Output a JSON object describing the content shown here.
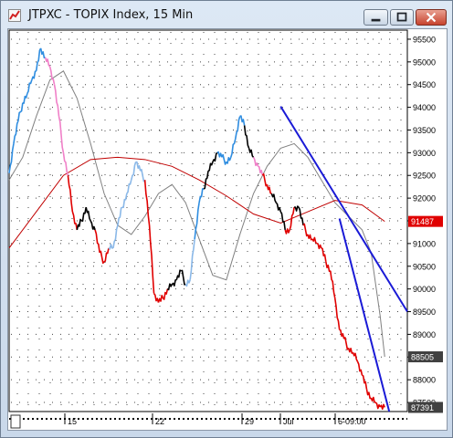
{
  "window": {
    "title": "JTPXC - TOPIX Index, 15 Min",
    "controls": [
      "minimize",
      "maximize",
      "close"
    ]
  },
  "icons": {
    "app": "chart-app-icon",
    "minimize": "minimize-icon",
    "maximize": "maximize-icon",
    "close": "close-icon"
  },
  "colors": {
    "up_bar": "#2f8de0",
    "down_bar_strong": "#e00000",
    "neutral_bar": "#000000",
    "soft_down": "#f080c8",
    "soft_up": "#8ab8e8",
    "fast_ma": "#808080",
    "slow_ma": "#c00000",
    "trendline": "#1a1ad6",
    "last_price_label_bg": "#404040",
    "ma_label_bg": "#e00000"
  },
  "chart_data": {
    "type": "line",
    "title": "JTPXC - TOPIX Index, 15 Min",
    "y_ticks": [
      "95500",
      "95000",
      "94500",
      "94000",
      "93500",
      "93000",
      "92500",
      "92000",
      "91500",
      "91000",
      "90500",
      "90000",
      "89500",
      "89000",
      "88500",
      "88000",
      "87500"
    ],
    "ylim": [
      87300,
      95700
    ],
    "x_ticks": [
      "15",
      "22",
      "29",
      "Jul",
      "6-09:00"
    ],
    "price_labels": [
      {
        "text": "91487",
        "value": 91487,
        "color": "#e00000"
      },
      {
        "text": "88505",
        "value": 88505,
        "color": "#404040"
      },
      {
        "text": "87391",
        "value": 87391,
        "color": "#404040"
      }
    ],
    "series": [
      {
        "kind": "price",
        "x": [
          0,
          5,
          10,
          15,
          20,
          25,
          30,
          35,
          40,
          45,
          50,
          55,
          60,
          65,
          70,
          75,
          80,
          85,
          90,
          95,
          100,
          105,
          110,
          115,
          120,
          125,
          130,
          135,
          140,
          145,
          150,
          155,
          160,
          165,
          170,
          175,
          180,
          185,
          190,
          195,
          200,
          205,
          210,
          215,
          220,
          225,
          230,
          235,
          240,
          245,
          250,
          255,
          260,
          265,
          270,
          275,
          280,
          285,
          290,
          295,
          300,
          305,
          310,
          315,
          320,
          325,
          330,
          335,
          340,
          345,
          350,
          355,
          360,
          365,
          370,
          375,
          380,
          385,
          390,
          395,
          400,
          405,
          410,
          415
        ],
        "values": [
          92550,
          93200,
          93700,
          94100,
          94300,
          94600,
          94800,
          95300,
          95100,
          94900,
          94500,
          93800,
          93000,
          92500,
          91700,
          91300,
          91500,
          91800,
          91500,
          91300,
          90800,
          90600,
          90900,
          90900,
          91400,
          91800,
          92100,
          92400,
          92800,
          92600,
          92400,
          91400,
          89900,
          89700,
          89800,
          90000,
          90100,
          90200,
          90400,
          90100,
          90200,
          91100,
          91900,
          92200,
          92600,
          92800,
          93000,
          92900,
          92800,
          92900,
          93300,
          93800,
          93600,
          93100,
          92900,
          92700,
          92500,
          92300,
          92100,
          91900,
          91700,
          91300,
          91300,
          91800,
          91800,
          91400,
          91200,
          91100,
          91000,
          90900,
          90600,
          90400,
          89800,
          89100,
          88900,
          88700,
          88600,
          88400,
          88100,
          87800,
          87600,
          87500,
          87400,
          87391
        ],
        "colors": [
          "#2f8de0",
          "#2f8de0",
          "#2f8de0",
          "#2f8de0",
          "#2f8de0",
          "#2f8de0",
          "#2f8de0",
          "#2f8de0",
          "#f080c8",
          "#f080c8",
          "#f080c8",
          "#f080c8",
          "#f080c8",
          "#e00000",
          "#e00000",
          "#000000",
          "#000000",
          "#000000",
          "#000000",
          "#e00000",
          "#e00000",
          "#e00000",
          "#8ab8e8",
          "#8ab8e8",
          "#8ab8e8",
          "#8ab8e8",
          "#8ab8e8",
          "#8ab8e8",
          "#8ab8e8",
          "#8ab8e8",
          "#e00000",
          "#e00000",
          "#e00000",
          "#e00000",
          "#e00000",
          "#000000",
          "#000000",
          "#000000",
          "#000000",
          "#8ab8e8",
          "#8ab8e8",
          "#2f8de0",
          "#2f8de0",
          "#000000",
          "#000000",
          "#000000",
          "#2f8de0",
          "#2f8de0",
          "#2f8de0",
          "#2f8de0",
          "#2f8de0",
          "#2f8de0",
          "#000000",
          "#000000",
          "#f080c8",
          "#f080c8",
          "#e00000",
          "#e00000",
          "#000000",
          "#000000",
          "#000000",
          "#e00000",
          "#e00000",
          "#000000",
          "#000000",
          "#e00000",
          "#e00000",
          "#e00000",
          "#e00000",
          "#e00000",
          "#e00000",
          "#e00000",
          "#e00000",
          "#e00000",
          "#e00000",
          "#e00000",
          "#e00000",
          "#e00000",
          "#e00000",
          "#e00000",
          "#e00000",
          "#e00000",
          "#e00000",
          "#e00000"
        ]
      },
      {
        "kind": "fast_ma",
        "x": [
          0,
          15,
          30,
          45,
          60,
          75,
          90,
          105,
          120,
          135,
          150,
          165,
          180,
          195,
          210,
          225,
          240,
          255,
          270,
          285,
          300,
          315,
          330,
          345,
          360,
          375,
          390,
          400,
          410,
          415
        ],
        "values": [
          92400,
          92900,
          93800,
          94600,
          94800,
          94200,
          93200,
          92100,
          91400,
          91200,
          91600,
          92100,
          92300,
          91900,
          91100,
          90300,
          90200,
          91200,
          92100,
          92700,
          93100,
          93200,
          92900,
          92400,
          91900,
          91600,
          91300,
          90800,
          89400,
          88505
        ]
      },
      {
        "kind": "slow_ma",
        "x": [
          0,
          30,
          60,
          90,
          120,
          150,
          180,
          210,
          240,
          270,
          300,
          330,
          360,
          390,
          415
        ],
        "values": [
          90900,
          91700,
          92500,
          92850,
          92900,
          92850,
          92700,
          92400,
          92050,
          91650,
          91450,
          91700,
          91950,
          91850,
          91487
        ]
      }
    ],
    "trendlines": [
      {
        "from": [
          300,
          94020
        ],
        "to": [
          440,
          89500
        ]
      },
      {
        "from": [
          365,
          91550
        ],
        "to": [
          420,
          87300
        ]
      }
    ]
  }
}
